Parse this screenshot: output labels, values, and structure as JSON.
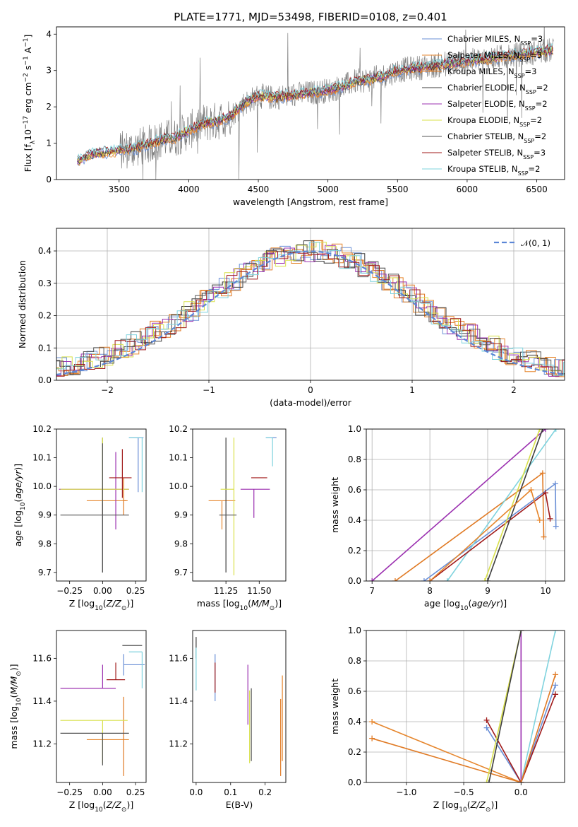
{
  "figure": {
    "title": "PLATE=1771, MJD=53498, FIBERID=0108, z=0.401"
  },
  "colors": {
    "data": "#808080",
    "Chabrier MILES": "#6a8fd6",
    "Salpeter MILES": "#e6862d",
    "Kroupa MILES": "#e07a24",
    "Chabrier ELODIE": "#3d3d3d",
    "Salpeter ELODIE": "#9b30b0",
    "Kroupa ELODIE": "#d8e04a",
    "Chabrier STELIB": "#555555",
    "Salpeter STELIB": "#a01a1a",
    "Kroupa STELIB": "#7fd3de"
  },
  "chart_data": [
    {
      "id": "spectrum",
      "type": "line",
      "title": "PLATE=1771, MJD=53498, FIBERID=0108, z=0.401",
      "xlabel": "wavelength [Angstrom, rest frame]",
      "ylabel": "Flux [f_λ 10^{-17} erg cm^{-2} s^{-1} A^{-1}]",
      "xlim": [
        3050,
        6700
      ],
      "ylim": [
        0,
        4.2
      ],
      "xticks": [
        3500,
        4000,
        4500,
        5000,
        5500,
        6000,
        6500
      ],
      "yticks": [
        0,
        1,
        2,
        3,
        4
      ],
      "grid": false,
      "legend_position": "right",
      "legend": [
        {
          "label": "Chabrier MILES, N",
          "sub": "SSP",
          "tail": "=3"
        },
        {
          "label": "Salpeter MILES, N",
          "sub": "SSP",
          "tail": "=3"
        },
        {
          "label": "Kroupa MILES, N",
          "sub": "SSP",
          "tail": "=3"
        },
        {
          "label": "Chabrier ELODIE, N",
          "sub": "SSP",
          "tail": "=2"
        },
        {
          "label": "Salpeter ELODIE, N",
          "sub": "SSP",
          "tail": "=2"
        },
        {
          "label": "Kroupa ELODIE, N",
          "sub": "SSP",
          "tail": "=2"
        },
        {
          "label": "Chabrier STELIB, N",
          "sub": "SSP",
          "tail": "=2"
        },
        {
          "label": "Salpeter STELIB, N",
          "sub": "SSP",
          "tail": "=3"
        },
        {
          "label": "Kroupa STELIB, N",
          "sub": "SSP",
          "tail": "=2"
        }
      ],
      "continuum": {
        "x": [
          3200,
          3250,
          3300,
          3400,
          3500,
          3600,
          3700,
          3800,
          3900,
          4000,
          4100,
          4200,
          4300,
          4400,
          4500,
          4600,
          4700,
          4800,
          4900,
          5000,
          5100,
          5200,
          5300,
          5400,
          5500,
          5600,
          5700,
          5800,
          5900,
          6000,
          6100,
          6200,
          6300,
          6400,
          6500,
          6600
        ],
        "y": [
          0.5,
          0.6,
          0.7,
          0.75,
          0.8,
          0.85,
          0.95,
          1.1,
          1.15,
          1.35,
          1.55,
          1.6,
          1.75,
          2.1,
          2.3,
          2.25,
          2.3,
          2.35,
          2.4,
          2.45,
          2.55,
          2.7,
          2.75,
          2.85,
          3.0,
          3.05,
          3.1,
          3.15,
          3.2,
          3.25,
          3.3,
          3.35,
          3.4,
          3.45,
          3.5,
          3.55
        ]
      }
    },
    {
      "id": "residual-distribution",
      "type": "line",
      "xlabel": "(data-model)/error",
      "ylabel": "Normed distribution",
      "xlim": [
        -2.5,
        2.5
      ],
      "ylim": [
        0,
        0.47
      ],
      "xticks": [
        -2,
        -1,
        0,
        1,
        2
      ],
      "yticks": [
        0.0,
        0.1,
        0.2,
        0.3,
        0.4
      ],
      "grid": true,
      "legend_position": "top-right",
      "legend": [
        {
          "label": "𝒩(0, 1)"
        }
      ],
      "gaussian": {
        "mean": 0,
        "sigma": 1
      }
    },
    {
      "id": "age-vs-Z",
      "type": "scatter",
      "xlabel": "Z [log10(Z/Z⊙)]",
      "ylabel": "age [log10(age/yr)]",
      "xlim": [
        -0.35,
        0.33
      ],
      "ylim": [
        9.67,
        10.2
      ],
      "xticks": [
        -0.25,
        0.0,
        0.25
      ],
      "xticklabels": [
        "−0.25",
        "0.00",
        "0.25"
      ],
      "yticks": [
        9.7,
        9.8,
        9.9,
        10.0,
        10.1,
        10.2
      ],
      "grid": false,
      "points": [
        {
          "model": "Chabrier MILES",
          "x": 0.27,
          "y": 10.17,
          "xerr": [
            0.07,
            0.04
          ],
          "yerr": [
            0.19,
            0.0
          ]
        },
        {
          "model": "Salpeter MILES",
          "x": 0.0,
          "y": 9.95,
          "xerr": [
            0.12,
            0.19
          ],
          "yerr": [
            0.05,
            0.05
          ]
        },
        {
          "model": "Kroupa MILES",
          "x": 0.16,
          "y": 9.95,
          "xerr": [
            0.0,
            0.02
          ],
          "yerr": [
            0.05,
            0.08
          ]
        },
        {
          "model": "Chabrier ELODIE",
          "x": 0.0,
          "y": 10.17,
          "xerr": [
            0.0,
            0.0
          ],
          "yerr": [
            0.47,
            0.0
          ]
        },
        {
          "model": "Salpeter ELODIE",
          "x": 0.1,
          "y": 9.99,
          "xerr": [
            0.43,
            0.1
          ],
          "yerr": [
            0.14,
            0.13
          ]
        },
        {
          "model": "Kroupa ELODIE",
          "x": 0.0,
          "y": 9.99,
          "xerr": [
            0.32,
            0.2
          ],
          "yerr": [
            0.05,
            0.18
          ]
        },
        {
          "model": "Chabrier STELIB",
          "x": 0.0,
          "y": 9.9,
          "xerr": [
            0.32,
            0.2
          ],
          "yerr": [
            0.2,
            0.25
          ]
        },
        {
          "model": "Salpeter STELIB",
          "x": 0.15,
          "y": 10.03,
          "xerr": [
            0.1,
            0.07
          ],
          "yerr": [
            0.07,
            0.1
          ]
        },
        {
          "model": "Kroupa STELIB",
          "x": 0.3,
          "y": 10.17,
          "xerr": [
            0.1,
            0.0
          ],
          "yerr": [
            0.19,
            0.0
          ]
        }
      ]
    },
    {
      "id": "age-vs-mass",
      "type": "scatter",
      "xlabel": "mass [log10(M/M⊙)]",
      "ylabel": "",
      "xlim": [
        11.0,
        11.7
      ],
      "ylim": [
        9.67,
        10.2
      ],
      "xticks": [
        11.25,
        11.5
      ],
      "xticklabels": [
        "11.25",
        "11.50"
      ],
      "yticks": [
        9.7,
        9.8,
        9.9,
        10.0,
        10.1,
        10.2
      ],
      "grid": false,
      "points": [
        {
          "model": "Chabrier MILES",
          "x": 11.55,
          "y": 10.17,
          "xerr": [
            0.0,
            0.08
          ],
          "yerr": [
            0.0,
            0.0
          ]
        },
        {
          "model": "Salpeter MILES",
          "x": 11.22,
          "y": 9.95,
          "xerr": [
            0.1,
            0.1
          ],
          "yerr": [
            0.1,
            0.0
          ]
        },
        {
          "model": "Kroupa MILES",
          "x": 11.22,
          "y": 9.95,
          "xerr": [
            0.0,
            0.0
          ],
          "yerr": [
            0.0,
            0.0
          ]
        },
        {
          "model": "Chabrier ELODIE",
          "x": 11.25,
          "y": 10.17,
          "xerr": [
            0.0,
            0.0
          ],
          "yerr": [
            0.47,
            0.0
          ]
        },
        {
          "model": "Salpeter ELODIE",
          "x": 11.46,
          "y": 9.99,
          "xerr": [
            0.1,
            0.12
          ],
          "yerr": [
            0.1,
            0.0
          ]
        },
        {
          "model": "Kroupa ELODIE",
          "x": 11.31,
          "y": 9.99,
          "xerr": [
            0.1,
            0.0
          ],
          "yerr": [
            0.3,
            0.18
          ]
        },
        {
          "model": "Chabrier STELIB",
          "x": 11.25,
          "y": 9.9,
          "xerr": [
            0.05,
            0.08
          ],
          "yerr": [
            0.0,
            0.0
          ]
        },
        {
          "model": "Salpeter STELIB",
          "x": 11.5,
          "y": 10.03,
          "xerr": [
            0.06,
            0.06
          ],
          "yerr": [
            0.0,
            0.0
          ]
        },
        {
          "model": "Kroupa STELIB",
          "x": 11.6,
          "y": 10.17,
          "xerr": [
            0.05,
            0.0
          ],
          "yerr": [
            0.1,
            0.0
          ]
        }
      ]
    },
    {
      "id": "mass-weight-vs-age",
      "type": "line",
      "xlabel": "age [log10(age/yr)]",
      "ylabel": "mass weight",
      "xlim": [
        6.9,
        10.33
      ],
      "ylim": [
        0,
        1
      ],
      "xticks": [
        7,
        8,
        9,
        10
      ],
      "yticks": [
        0.0,
        0.2,
        0.4,
        0.6,
        0.8,
        1.0
      ],
      "grid": true,
      "series": [
        {
          "model": "Salpeter ELODIE",
          "x": [
            7.0,
            10.0
          ],
          "y": [
            0.0,
            1.0
          ]
        },
        {
          "model": "Kroupa MILES",
          "x": [
            7.4,
            9.95,
            9.97
          ],
          "y": [
            0.0,
            0.71,
            0.29
          ]
        },
        {
          "model": "Chabrier MILES",
          "x": [
            7.9,
            10.17,
            10.18
          ],
          "y": [
            0.0,
            0.64,
            0.36
          ]
        },
        {
          "model": "Kroupa STELIB",
          "x": [
            8.3,
            10.18
          ],
          "y": [
            0.0,
            1.0
          ]
        },
        {
          "model": "Salpeter STELIB",
          "x": [
            8.0,
            10.0,
            10.08
          ],
          "y": [
            0.0,
            0.58,
            0.41
          ]
        },
        {
          "model": "Kroupa ELODIE",
          "x": [
            8.95,
            9.9
          ],
          "y": [
            0.0,
            1.0
          ]
        },
        {
          "model": "Chabrier ELODIE",
          "x": [
            9.0,
            9.95
          ],
          "y": [
            0.0,
            1.0
          ]
        },
        {
          "model": "Salpeter MILES",
          "x": [
            8.0,
            9.75,
            9.9
          ],
          "y": [
            0.0,
            0.6,
            0.4
          ]
        }
      ]
    },
    {
      "id": "mass-vs-Z",
      "type": "scatter",
      "xlabel": "Z [log10(Z/Z⊙)]",
      "ylabel": "mass [log10(M/M⊙)]",
      "xlim": [
        -0.35,
        0.33
      ],
      "ylim": [
        11.02,
        11.73
      ],
      "xticks": [
        -0.25,
        0.0,
        0.25
      ],
      "xticklabels": [
        "−0.25",
        "0.00",
        "0.25"
      ],
      "yticks": [
        11.2,
        11.4,
        11.6
      ],
      "grid": false,
      "points": [
        {
          "model": "Chabrier MILES",
          "x": 0.16,
          "y": 11.57,
          "xerr": [
            0.0,
            0.16
          ],
          "yerr": [
            0.05,
            0.05
          ]
        },
        {
          "model": "Salpeter MILES",
          "x": 0.0,
          "y": 11.22,
          "xerr": [
            0.12,
            0.2
          ],
          "yerr": [
            0.0,
            0.0
          ]
        },
        {
          "model": "Kroupa MILES",
          "x": 0.16,
          "y": 11.22,
          "xerr": [
            0.0,
            0.0
          ],
          "yerr": [
            0.17,
            0.2
          ]
        },
        {
          "model": "Chabrier ELODIE",
          "x": 0.15,
          "y": 11.66,
          "xerr": [
            0.0,
            0.15
          ],
          "yerr": [
            0.0,
            0.0
          ]
        },
        {
          "model": "Salpeter ELODIE",
          "x": 0.0,
          "y": 11.46,
          "xerr": [
            0.32,
            0.1
          ],
          "yerr": [
            0.0,
            0.11
          ]
        },
        {
          "model": "Kroupa ELODIE",
          "x": 0.0,
          "y": 11.31,
          "xerr": [
            0.32,
            0.19
          ],
          "yerr": [
            0.2,
            0.0
          ]
        },
        {
          "model": "Chabrier STELIB",
          "x": 0.0,
          "y": 11.25,
          "xerr": [
            0.32,
            0.2
          ],
          "yerr": [
            0.15,
            0.0
          ]
        },
        {
          "model": "Salpeter STELIB",
          "x": 0.1,
          "y": 11.5,
          "xerr": [
            0.07,
            0.07
          ],
          "yerr": [
            0.0,
            0.08
          ]
        },
        {
          "model": "Kroupa STELIB",
          "x": 0.3,
          "y": 11.63,
          "xerr": [
            0.1,
            0.0
          ],
          "yerr": [
            0.17,
            0.0
          ]
        }
      ]
    },
    {
      "id": "mass-vs-ebv",
      "type": "scatter",
      "xlabel": "E(B-V)",
      "ylabel": "",
      "xlim": [
        -0.01,
        0.26
      ],
      "ylim": [
        11.02,
        11.73
      ],
      "xticks": [
        0.0,
        0.1,
        0.2
      ],
      "xticklabels": [
        "0.0",
        "0.1",
        "0.2"
      ],
      "yticks": [
        11.2,
        11.4,
        11.6
      ],
      "grid": false,
      "points": [
        {
          "model": "Chabrier ELODIE",
          "x": 0.0,
          "y": 11.65,
          "xerr": [
            0,
            0
          ],
          "yerr": [
            0.05,
            0.05
          ]
        },
        {
          "model": "Kroupa STELIB",
          "x": 0.0,
          "y": 11.55,
          "xerr": [
            0,
            0
          ],
          "yerr": [
            0.1,
            0.1
          ]
        },
        {
          "model": "Chabrier MILES",
          "x": 0.055,
          "y": 11.5,
          "xerr": [
            0,
            0
          ],
          "yerr": [
            0.1,
            0.12
          ]
        },
        {
          "model": "Salpeter STELIB",
          "x": 0.055,
          "y": 11.52,
          "xerr": [
            0,
            0
          ],
          "yerr": [
            0.08,
            0.06
          ]
        },
        {
          "model": "Salpeter ELODIE",
          "x": 0.15,
          "y": 11.43,
          "xerr": [
            0,
            0
          ],
          "yerr": [
            0.14,
            0.14
          ]
        },
        {
          "model": "Kroupa ELODIE",
          "x": 0.155,
          "y": 11.28,
          "xerr": [
            0,
            0
          ],
          "yerr": [
            0.17,
            0.17
          ]
        },
        {
          "model": "Chabrier STELIB",
          "x": 0.16,
          "y": 11.29,
          "xerr": [
            0,
            0
          ],
          "yerr": [
            0.17,
            0.17
          ]
        },
        {
          "model": "Kroupa MILES",
          "x": 0.245,
          "y": 11.23,
          "xerr": [
            0,
            0
          ],
          "yerr": [
            0.18,
            0.18
          ]
        },
        {
          "model": "Salpeter MILES",
          "x": 0.25,
          "y": 11.32,
          "xerr": [
            0,
            0
          ],
          "yerr": [
            0.2,
            0.2
          ]
        }
      ]
    },
    {
      "id": "mass-weight-vs-Z",
      "type": "line",
      "xlabel": "Z [log10(Z/Z⊙)]",
      "ylabel": "mass weight",
      "xlim": [
        -1.35,
        0.38
      ],
      "ylim": [
        0,
        1
      ],
      "xticks": [
        -1.0,
        -0.5,
        0.0
      ],
      "xticklabels": [
        "−1.0",
        "−0.5",
        "0.0"
      ],
      "yticks": [
        0.0,
        0.2,
        0.4,
        0.6,
        0.8,
        1.0
      ],
      "grid": true,
      "series": [
        {
          "model": "Salpeter MILES",
          "x": [
            -1.3,
            0.0
          ],
          "y": [
            0.4,
            0.0
          ]
        },
        {
          "model": "Kroupa MILES",
          "x": [
            -1.3,
            0.0
          ],
          "y": [
            0.29,
            0.0
          ]
        },
        {
          "model": "Chabrier MILES",
          "x": [
            -0.3,
            0.0,
            0.3
          ],
          "y": [
            0.36,
            0.0,
            0.64
          ]
        },
        {
          "model": "Salpeter STELIB",
          "x": [
            -0.3,
            0.0,
            0.3
          ],
          "y": [
            0.41,
            0.0,
            0.58
          ]
        },
        {
          "model": "Salpeter ELODIE",
          "x": [
            0.0,
            0.0
          ],
          "y": [
            0.0,
            1.0
          ]
        },
        {
          "model": "Kroupa ELODIE",
          "x": [
            -0.3,
            0.0
          ],
          "y": [
            0.0,
            1.0
          ]
        },
        {
          "model": "Chabrier ELODIE",
          "x": [
            -0.28,
            0.0
          ],
          "y": [
            0.0,
            1.0
          ]
        },
        {
          "model": "Kroupa STELIB",
          "x": [
            0.0,
            0.3
          ],
          "y": [
            0.0,
            1.0
          ]
        },
        {
          "model": "Kroupa MILES",
          "x": [
            0.0,
            0.3
          ],
          "y": [
            0.0,
            0.71
          ]
        }
      ]
    }
  ]
}
